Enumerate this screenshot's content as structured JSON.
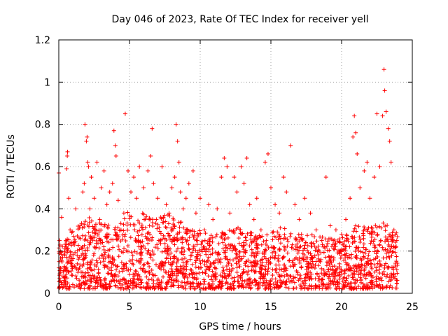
{
  "chart_data": {
    "type": "scatter",
    "title": "Day 046 of 2023, Rate Of TEC Index for receiver yell",
    "xlabel": "GPS time / hours",
    "ylabel": "ROTI / TECUs",
    "xlim": [
      0,
      25
    ],
    "ylim": [
      0,
      1.2
    ],
    "xticks": [
      0,
      5,
      10,
      15,
      20,
      25
    ],
    "xtick_labels": [
      "0",
      "5",
      "10",
      "15",
      "20",
      "25"
    ],
    "yticks": [
      0,
      0.2,
      0.4,
      0.6,
      0.8,
      1.0,
      1.2
    ],
    "ytick_labels": [
      "0",
      "0.2",
      "0.4",
      "0.6",
      "0.8",
      "1",
      "1.2"
    ],
    "grid": true,
    "marker": "+",
    "marker_color": "#ff0000",
    "series": [
      {
        "name": "ROTI",
        "points": [
          [
            0.0,
            0.57
          ],
          [
            0.05,
            0.25
          ],
          [
            0.1,
            0.12
          ],
          [
            0.2,
            0.36
          ],
          [
            0.3,
            0.08
          ],
          [
            0.4,
            0.18
          ],
          [
            0.5,
            0.22
          ],
          [
            0.55,
            0.59
          ],
          [
            0.6,
            0.65
          ],
          [
            0.62,
            0.67
          ],
          [
            0.7,
            0.45
          ],
          [
            0.8,
            0.3
          ],
          [
            0.9,
            0.14
          ],
          [
            1.0,
            0.24
          ],
          [
            1.2,
            0.4
          ],
          [
            1.3,
            0.18
          ],
          [
            1.5,
            0.32
          ],
          [
            1.7,
            0.48
          ],
          [
            1.8,
            0.52
          ],
          [
            1.85,
            0.8
          ],
          [
            1.95,
            0.72
          ],
          [
            2.0,
            0.74
          ],
          [
            2.05,
            0.62
          ],
          [
            2.1,
            0.6
          ],
          [
            2.2,
            0.4
          ],
          [
            2.3,
            0.55
          ],
          [
            2.5,
            0.45
          ],
          [
            2.7,
            0.62
          ],
          [
            2.9,
            0.35
          ],
          [
            3.0,
            0.5
          ],
          [
            3.2,
            0.58
          ],
          [
            3.4,
            0.42
          ],
          [
            3.6,
            0.48
          ],
          [
            3.8,
            0.52
          ],
          [
            3.9,
            0.77
          ],
          [
            4.0,
            0.7
          ],
          [
            4.05,
            0.65
          ],
          [
            4.2,
            0.44
          ],
          [
            4.4,
            0.3
          ],
          [
            4.6,
            0.38
          ],
          [
            4.7,
            0.85
          ],
          [
            4.9,
            0.58
          ],
          [
            5.1,
            0.48
          ],
          [
            5.3,
            0.55
          ],
          [
            5.5,
            0.45
          ],
          [
            5.7,
            0.6
          ],
          [
            6.0,
            0.5
          ],
          [
            6.3,
            0.58
          ],
          [
            6.5,
            0.65
          ],
          [
            6.6,
            0.78
          ],
          [
            6.7,
            0.52
          ],
          [
            6.9,
            0.35
          ],
          [
            7.0,
            0.45
          ],
          [
            7.3,
            0.6
          ],
          [
            7.6,
            0.42
          ],
          [
            7.8,
            0.38
          ],
          [
            8.0,
            0.5
          ],
          [
            8.2,
            0.55
          ],
          [
            8.3,
            0.8
          ],
          [
            8.4,
            0.72
          ],
          [
            8.5,
            0.62
          ],
          [
            8.6,
            0.48
          ],
          [
            8.8,
            0.4
          ],
          [
            9.0,
            0.45
          ],
          [
            9.2,
            0.52
          ],
          [
            9.5,
            0.58
          ],
          [
            9.7,
            0.38
          ],
          [
            10.0,
            0.45
          ],
          [
            10.3,
            0.3
          ],
          [
            10.6,
            0.42
          ],
          [
            10.9,
            0.35
          ],
          [
            11.2,
            0.4
          ],
          [
            11.5,
            0.55
          ],
          [
            11.7,
            0.64
          ],
          [
            11.9,
            0.6
          ],
          [
            12.1,
            0.38
          ],
          [
            12.4,
            0.55
          ],
          [
            12.6,
            0.48
          ],
          [
            12.9,
            0.6
          ],
          [
            13.1,
            0.52
          ],
          [
            13.3,
            0.64
          ],
          [
            13.5,
            0.42
          ],
          [
            13.8,
            0.35
          ],
          [
            14.0,
            0.45
          ],
          [
            14.3,
            0.3
          ],
          [
            14.6,
            0.62
          ],
          [
            14.8,
            0.66
          ],
          [
            15.0,
            0.5
          ],
          [
            15.3,
            0.42
          ],
          [
            15.6,
            0.38
          ],
          [
            15.9,
            0.55
          ],
          [
            16.1,
            0.48
          ],
          [
            16.4,
            0.7
          ],
          [
            16.7,
            0.42
          ],
          [
            17.0,
            0.35
          ],
          [
            17.4,
            0.45
          ],
          [
            17.8,
            0.38
          ],
          [
            18.2,
            0.3
          ],
          [
            18.6,
            0.25
          ],
          [
            18.9,
            0.55
          ],
          [
            19.2,
            0.32
          ],
          [
            19.6,
            0.3
          ],
          [
            20.0,
            0.28
          ],
          [
            20.3,
            0.35
          ],
          [
            20.6,
            0.45
          ],
          [
            20.8,
            0.74
          ],
          [
            20.9,
            0.84
          ],
          [
            21.0,
            0.76
          ],
          [
            21.1,
            0.66
          ],
          [
            21.3,
            0.5
          ],
          [
            21.6,
            0.58
          ],
          [
            21.8,
            0.62
          ],
          [
            22.0,
            0.45
          ],
          [
            22.3,
            0.55
          ],
          [
            22.5,
            0.85
          ],
          [
            22.7,
            0.6
          ],
          [
            22.9,
            0.84
          ],
          [
            23.0,
            1.06
          ],
          [
            23.05,
            0.96
          ],
          [
            23.15,
            0.86
          ],
          [
            23.3,
            0.78
          ],
          [
            23.4,
            0.72
          ],
          [
            23.5,
            0.62
          ],
          [
            23.7,
            0.3
          ],
          [
            23.9,
            0.25
          ]
        ],
        "baseline_envelope": {
          "hours": [
            0,
            1,
            2,
            3,
            4,
            5,
            6,
            7,
            8,
            9,
            10,
            11,
            12,
            13,
            14,
            15,
            16,
            17,
            18,
            19,
            20,
            21,
            22,
            23,
            24
          ],
          "typical_max": [
            0.22,
            0.28,
            0.35,
            0.32,
            0.3,
            0.38,
            0.36,
            0.34,
            0.36,
            0.3,
            0.28,
            0.26,
            0.28,
            0.3,
            0.26,
            0.28,
            0.3,
            0.26,
            0.26,
            0.24,
            0.24,
            0.3,
            0.3,
            0.32,
            0.26
          ]
        }
      }
    ]
  }
}
